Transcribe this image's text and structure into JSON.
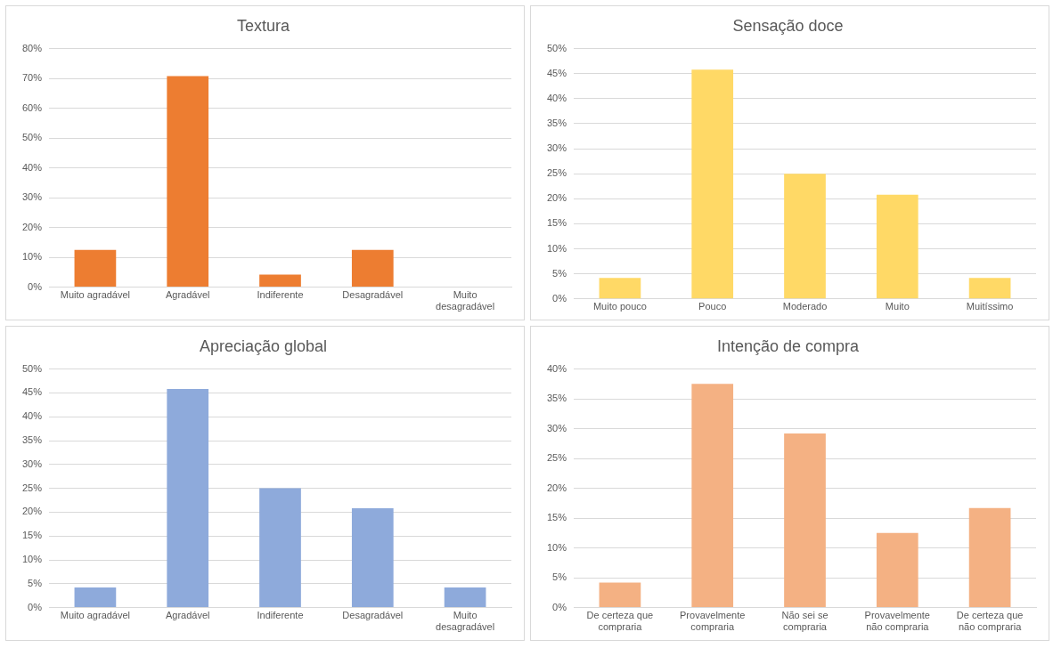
{
  "chart_data": [
    {
      "type": "bar",
      "title": "Textura",
      "categories": [
        "Muito agradável",
        "Agradável",
        "Indiferente",
        "Desagradável",
        "Muito desagradável"
      ],
      "values": [
        12.5,
        70.8,
        4.2,
        12.5,
        0
      ],
      "color": "#ed7d31",
      "ylim": [
        0,
        80
      ],
      "yticks": [
        {
          "value": 0,
          "label": "0%"
        },
        {
          "value": 10,
          "label": "10%"
        },
        {
          "value": 20,
          "label": "20%"
        },
        {
          "value": 30,
          "label": "30%"
        },
        {
          "value": 40,
          "label": "40%"
        },
        {
          "value": 50,
          "label": "50%"
        },
        {
          "value": 60,
          "label": "60%"
        },
        {
          "value": 70,
          "label": "70%"
        },
        {
          "value": 80,
          "label": "80%"
        }
      ],
      "grid": "y"
    },
    {
      "type": "bar",
      "title": "Sensação doce",
      "categories": [
        "Muito pouco",
        "Pouco",
        "Moderado",
        "Muito",
        "Muitíssimo"
      ],
      "values": [
        4.2,
        45.8,
        25,
        20.8,
        4.2
      ],
      "color": "#ffd966",
      "ylim": [
        0,
        50
      ],
      "yticks": [
        {
          "value": 0,
          "label": "0%"
        },
        {
          "value": 5,
          "label": "5%"
        },
        {
          "value": 10,
          "label": "10%"
        },
        {
          "value": 15,
          "label": "15%"
        },
        {
          "value": 20,
          "label": "20%"
        },
        {
          "value": 25,
          "label": "25%"
        },
        {
          "value": 30,
          "label": "30%"
        },
        {
          "value": 35,
          "label": "35%"
        },
        {
          "value": 40,
          "label": "40%"
        },
        {
          "value": 45,
          "label": "45%"
        },
        {
          "value": 50,
          "label": "50%"
        }
      ],
      "grid": "y"
    },
    {
      "type": "bar",
      "title": "Apreciação global",
      "categories": [
        "Muito agradável",
        "Agradável",
        "Indiferente",
        "Desagradável",
        "Muito desagradável"
      ],
      "values": [
        4.2,
        45.8,
        25,
        20.8,
        4.2
      ],
      "color": "#8eaadb",
      "ylim": [
        0,
        50
      ],
      "yticks": [
        {
          "value": 0,
          "label": "0%"
        },
        {
          "value": 5,
          "label": "5%"
        },
        {
          "value": 10,
          "label": "10%"
        },
        {
          "value": 15,
          "label": "15%"
        },
        {
          "value": 20,
          "label": "20%"
        },
        {
          "value": 25,
          "label": "25%"
        },
        {
          "value": 30,
          "label": "30%"
        },
        {
          "value": 35,
          "label": "35%"
        },
        {
          "value": 40,
          "label": "40%"
        },
        {
          "value": 45,
          "label": "45%"
        },
        {
          "value": 50,
          "label": "50%"
        }
      ],
      "grid": "y"
    },
    {
      "type": "bar",
      "title": "Intenção de compra",
      "categories": [
        "De certeza que compraria",
        "Provavelmente compraria",
        "Não sei se compraria",
        "Provavelmente não compraria",
        "De certeza que não compraria"
      ],
      "values": [
        4.2,
        37.5,
        29.2,
        12.5,
        16.7
      ],
      "color": "#f4b183",
      "ylim": [
        0,
        40
      ],
      "yticks": [
        {
          "value": 0,
          "label": "0%"
        },
        {
          "value": 5,
          "label": "5%"
        },
        {
          "value": 10,
          "label": "10%"
        },
        {
          "value": 15,
          "label": "15%"
        },
        {
          "value": 20,
          "label": "20%"
        },
        {
          "value": 25,
          "label": "25%"
        },
        {
          "value": 30,
          "label": "30%"
        },
        {
          "value": 35,
          "label": "35%"
        },
        {
          "value": 40,
          "label": "40%"
        }
      ],
      "grid": "y"
    }
  ]
}
